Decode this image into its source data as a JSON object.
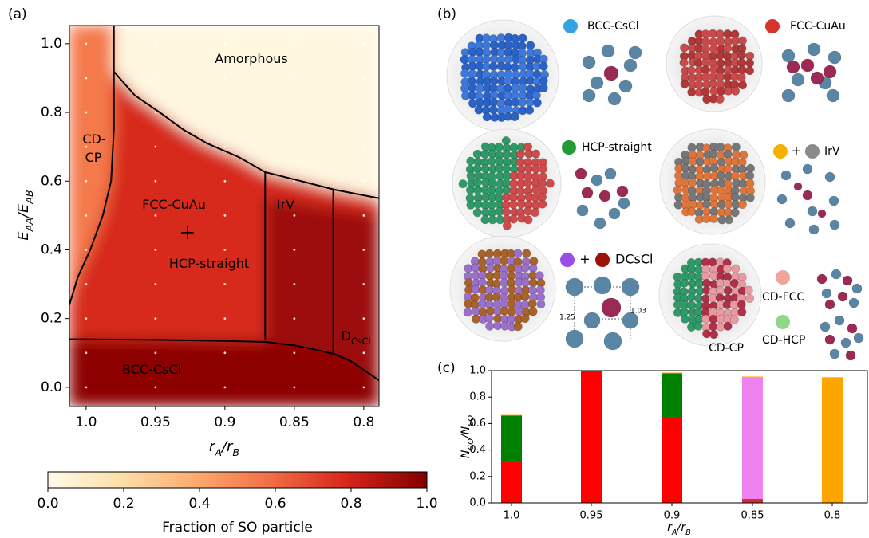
{
  "panel_labels": [
    "(a)",
    "(b)",
    "(c)"
  ],
  "chart_data": [
    {
      "type": "phase-diagram",
      "xlabel": [
        "r",
        "A",
        "/r",
        "B"
      ],
      "ylabel": [
        "E",
        "AA",
        "/E",
        "AB"
      ],
      "xlim": [
        1.012,
        0.789
      ],
      "ylim": [
        -0.056,
        1.053
      ],
      "xticks": [
        {
          "value": 1,
          "label": "1.0"
        },
        0.95,
        0.9,
        0.85,
        0.8
      ],
      "yticks": [
        {
          "value": 0,
          "label": "0.0"
        },
        0.2,
        0.4,
        0.6,
        0.8,
        {
          "value": 1,
          "label": "1.0"
        }
      ],
      "regions": [
        {
          "x": [
            1.012,
            0.789,
            0.789,
            1.012
          ],
          "y": [
            -0.056,
            -0.056,
            1.053,
            1.053
          ],
          "value": 0.78
        },
        {
          "x": [
            0.98,
            0.965,
            0.947,
            0.93,
            0.913,
            0.89,
            0.871,
            0.845,
            0.821,
            0.789,
            0.789,
            0.98
          ],
          "y": [
            0.919,
            0.85,
            0.8,
            0.75,
            0.71,
            0.67,
            0.626,
            0.6,
            0.575,
            0.55,
            1.053,
            1.053
          ],
          "value": 0.03
        },
        {
          "x": [
            1.012,
            0.98,
            0.98,
            0.982,
            0.988,
            0.997,
            1.006,
            1.012
          ],
          "y": [
            1.053,
            1.053,
            0.75,
            0.6,
            0.5,
            0.4,
            0.32,
            0.24
          ],
          "value": 0.55
        },
        {
          "x": [
            0.871,
            0.789,
            0.789,
            0.871
          ],
          "y": [
            0.55,
            0.5,
            0.0,
            0.1
          ],
          "value": 0.93
        },
        {
          "x": [
            1.012,
            0.95,
            0.9,
            0.871,
            0.85,
            0.832,
            0.82,
            0.809,
            0.789,
            0.789,
            1.012
          ],
          "y": [
            0.14,
            0.138,
            0.135,
            0.132,
            0.122,
            0.107,
            0.095,
            0.075,
            0.02,
            -0.056,
            -0.056
          ],
          "value": 0.97
        }
      ],
      "boundaries": [
        {
          "x": [
            0.98,
            0.98,
            0.982,
            0.988,
            0.997,
            1.006,
            1.012
          ],
          "y": [
            1.053,
            0.75,
            0.6,
            0.5,
            0.4,
            0.32,
            0.24
          ]
        },
        {
          "x": [
            0.98,
            0.965,
            0.947,
            0.93,
            0.913,
            0.89,
            0.871,
            0.845,
            0.821,
            0.789
          ],
          "y": [
            0.919,
            0.85,
            0.8,
            0.75,
            0.71,
            0.67,
            0.626,
            0.6,
            0.575,
            0.55
          ]
        },
        {
          "x": [
            0.871,
            0.871
          ],
          "y": [
            0.626,
            0.137
          ]
        },
        {
          "x": [
            0.822,
            0.822
          ],
          "y": [
            0.575,
            0.095
          ]
        },
        {
          "x": [
            1.012,
            0.95,
            0.9,
            0.871,
            0.85,
            0.832,
            0.82,
            0.809,
            0.789
          ],
          "y": [
            0.14,
            0.138,
            0.135,
            0.132,
            0.122,
            0.107,
            0.095,
            0.075,
            0.02
          ]
        }
      ],
      "region_labels": [
        [
          "Amorphous"
        ],
        [
          "CD-"
        ],
        [
          "CP"
        ],
        [
          "FCC-CuAu"
        ],
        [
          "HCP-straight"
        ],
        [
          "IrV"
        ],
        [
          "D",
          "CsCl"
        ],
        [
          "BCC-CsCl"
        ]
      ],
      "sample_x": [
        1,
        0.95,
        0.9,
        0.85,
        0.8
      ],
      "sample_y": [
        0,
        0.1,
        0.2,
        0.3,
        0.4,
        0.5,
        0.6,
        0.7,
        0.8,
        0.9,
        1
      ],
      "marker": {
        "x": 0.927,
        "y": 0.45
      },
      "colorbar": {
        "label": "Fraction of SO particle",
        "lim": [
          0,
          1
        ],
        "colormap": "OrRd",
        "ticks": [
          {
            "value": 0,
            "label": "0.0"
          },
          0.2,
          0.4,
          0.6,
          0.8,
          {
            "value": 1,
            "label": "1.0"
          }
        ]
      }
    },
    {
      "type": "stacked-bar",
      "categories": [
        "1.0",
        "0.95",
        "0.9",
        "0.85",
        "0.8"
      ],
      "xlabel": [
        "r",
        "A",
        "/r",
        "B"
      ],
      "ylabel": [
        "N",
        "CO",
        "/N",
        "SO"
      ],
      "ylim": [
        0,
        1
      ],
      "yticks": [
        {
          "value": 0,
          "label": "0.0"
        },
        0.2,
        0.4,
        0.6,
        0.8,
        {
          "value": 1,
          "label": "1.0"
        }
      ],
      "series": [
        {
          "color": "#ff0000",
          "values": [
            0.31,
            1.0,
            0.64,
            0,
            0
          ]
        },
        {
          "color": "#c83232",
          "values": [
            0,
            0,
            0,
            0.03,
            0
          ]
        },
        {
          "color": "#008000",
          "values": [
            0.35,
            0,
            0.34,
            0,
            0
          ]
        },
        {
          "color": "#ee82ee",
          "values": [
            0,
            0,
            0,
            0.92,
            0
          ]
        },
        {
          "color": "#ffa500",
          "values": [
            0.005,
            0,
            0.005,
            0.005,
            0.95
          ]
        }
      ]
    }
  ],
  "panel_b": {
    "legend_labels": [
      "BCC-CsCl",
      "FCC-CuAu",
      "HCP-straight",
      "IrV",
      "DCsCl",
      "CD-FCC",
      "CD-HCP"
    ],
    "plus": "+",
    "cluster_label": "CD-CP",
    "distances": [
      "1.25",
      "1.03"
    ]
  }
}
